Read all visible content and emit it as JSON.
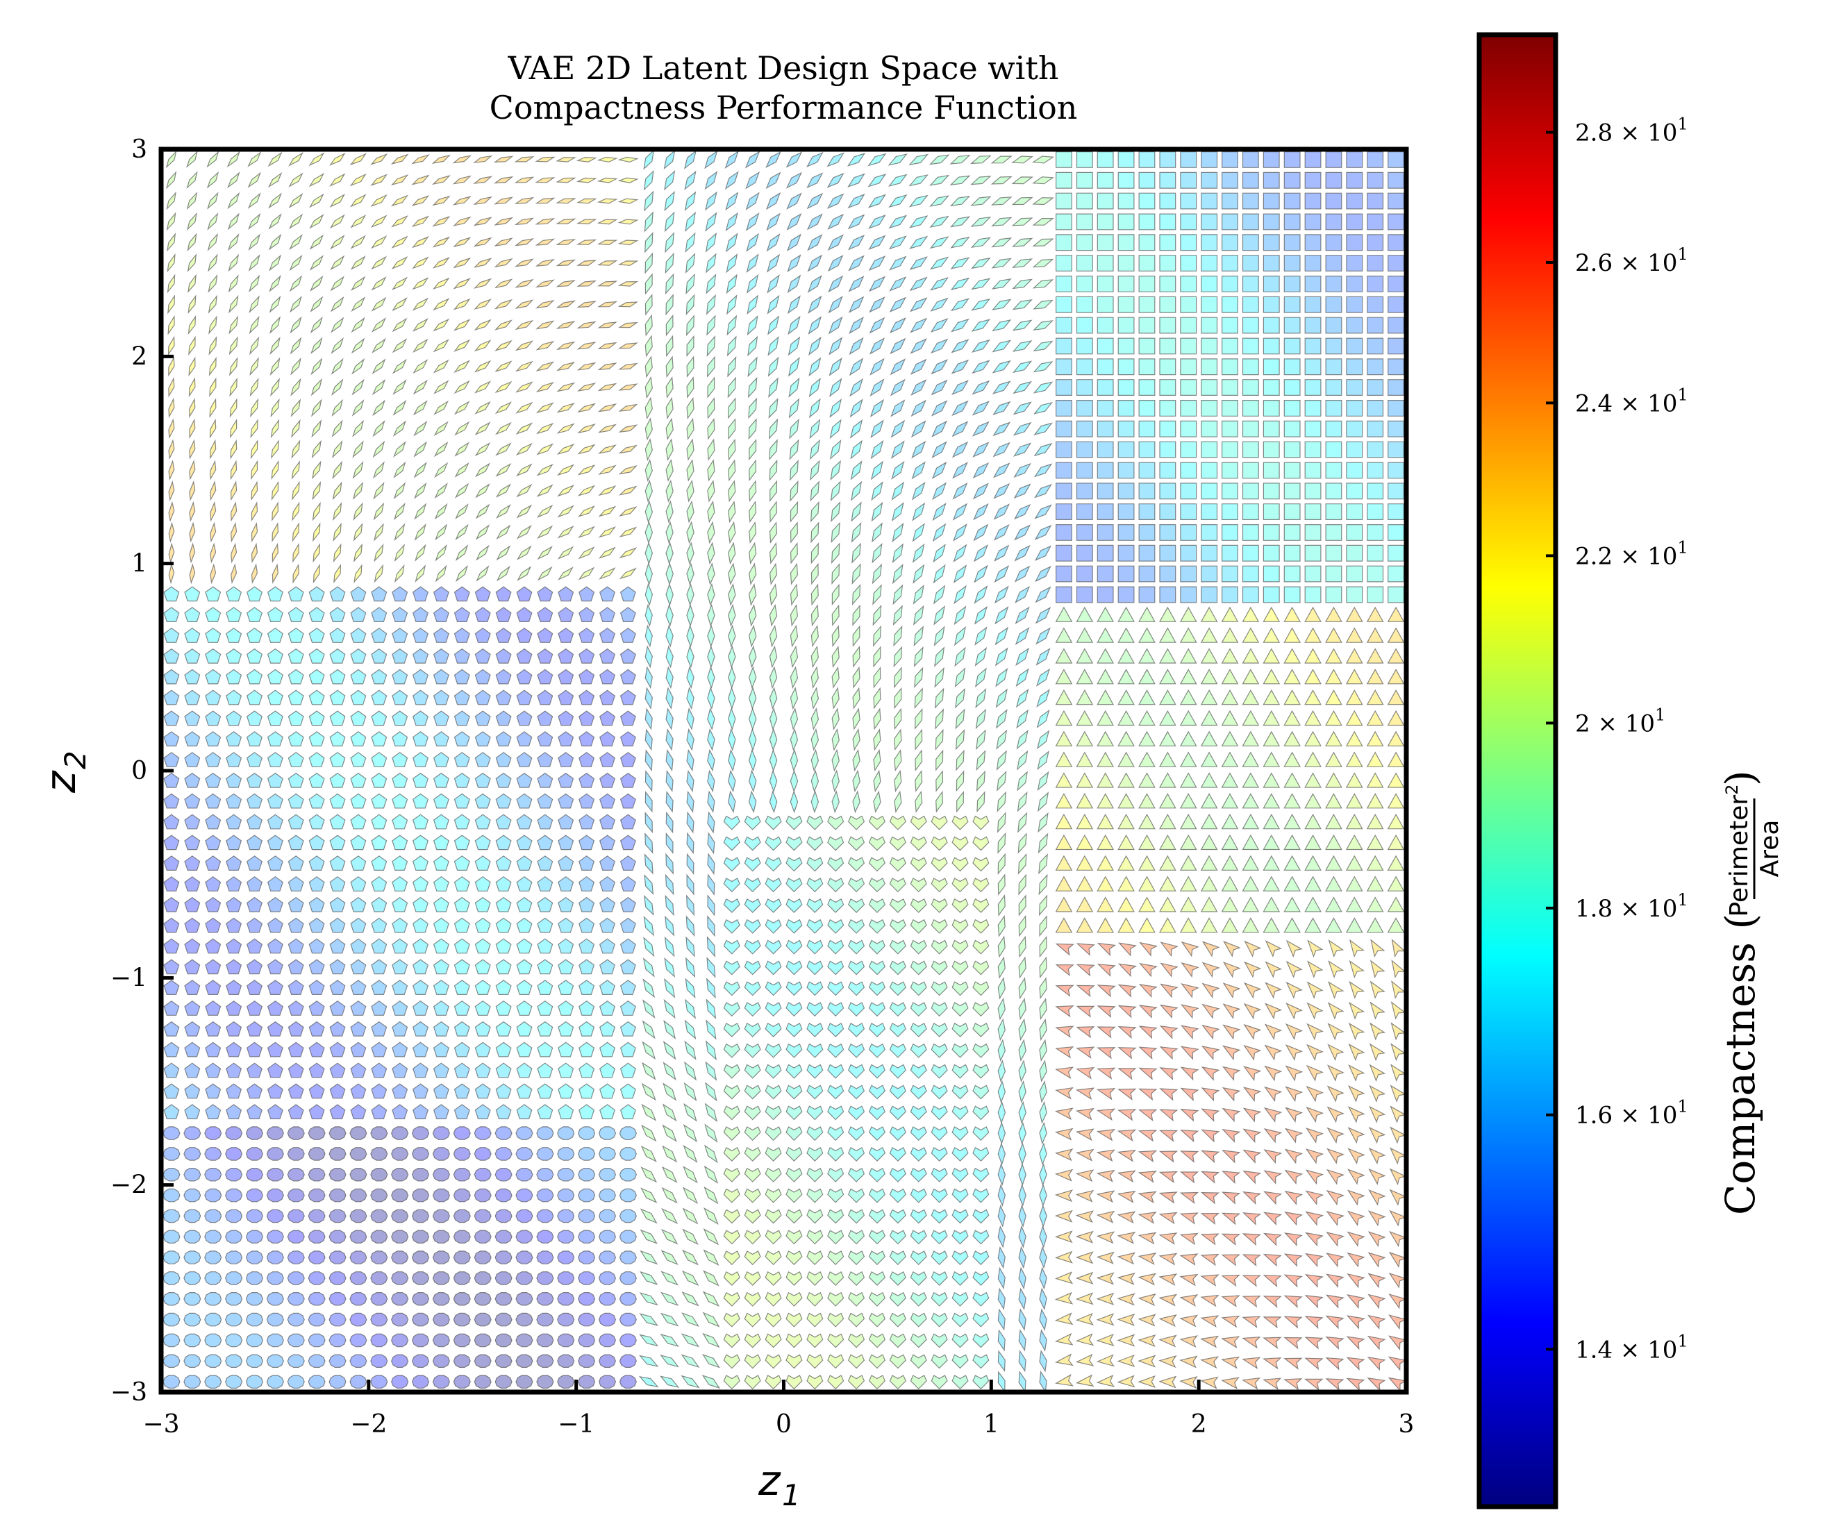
{
  "chart_data": {
    "type": "scatter",
    "title_lines": [
      "VAE 2D Latent Design Space with",
      "Compactness Performance Function"
    ],
    "xlabel": "z",
    "xlabel_sub": "1",
    "ylabel": "z",
    "ylabel_sub": "2",
    "xlim": [
      -3,
      3
    ],
    "ylim": [
      -3,
      3
    ],
    "grid": false,
    "x_ticks": [
      -3,
      -2,
      -1,
      0,
      1,
      2,
      3
    ],
    "y_ticks": [
      -3,
      -2,
      -1,
      0,
      1,
      2,
      3
    ],
    "x_tick_labels": [
      "−3",
      "−2",
      "−1",
      "0",
      "1",
      "2",
      "3"
    ],
    "y_tick_labels": [
      "−3",
      "−2",
      "−1",
      "0",
      "1",
      "2",
      "3"
    ],
    "samples_per_axis": 60,
    "mark_description": "decoded shape glyph at each latent grid point, colored by compactness",
    "colorbar": {
      "label": "Compactness (",
      "label_close": ")",
      "frac_numerator": "Perimeter",
      "frac_numerator_sup": "2",
      "frac_denominator": "Area",
      "scale": "log",
      "colormap": "jet",
      "range": [
        12.8,
        29.6
      ],
      "ticks": [
        {
          "value": 14,
          "mantissa": "1.4",
          "exponent": "1"
        },
        {
          "value": 16,
          "mantissa": "1.6",
          "exponent": "1"
        },
        {
          "value": 18,
          "mantissa": "1.8",
          "exponent": "1"
        },
        {
          "value": 20,
          "mantissa": "2",
          "exponent": "1"
        },
        {
          "value": 22,
          "mantissa": "2.2",
          "exponent": "1"
        },
        {
          "value": 24,
          "mantissa": "2.4",
          "exponent": "1"
        },
        {
          "value": 26,
          "mantissa": "2.6",
          "exponent": "1"
        },
        {
          "value": 28,
          "mantissa": "2.8",
          "exponent": "1"
        }
      ],
      "times_sign": "×",
      "base": "10",
      "colors": [
        "#00007f",
        "#0000ff",
        "#007fff",
        "#00ffff",
        "#7fff7f",
        "#ffff00",
        "#ff7f00",
        "#ff0000",
        "#7f0000"
      ]
    },
    "regions": [
      {
        "name": "upper-left",
        "shape": "leaf",
        "compactness": 21.5
      },
      {
        "name": "left-middle",
        "shape": "pentagon",
        "compactness": 16.0
      },
      {
        "name": "lower-left",
        "shape": "ellipse",
        "compactness": 14.5
      },
      {
        "name": "center-upper",
        "shape": "diamond",
        "compactness": 18.0
      },
      {
        "name": "center-lower",
        "shape": "heart",
        "compactness": 19.0
      },
      {
        "name": "upper-right",
        "shape": "square",
        "compactness": 16.5
      },
      {
        "name": "right-middle",
        "shape": "triangle",
        "compactness": 21.0
      },
      {
        "name": "lower-right",
        "shape": "arrowhead",
        "compactness": 24.0
      }
    ]
  }
}
